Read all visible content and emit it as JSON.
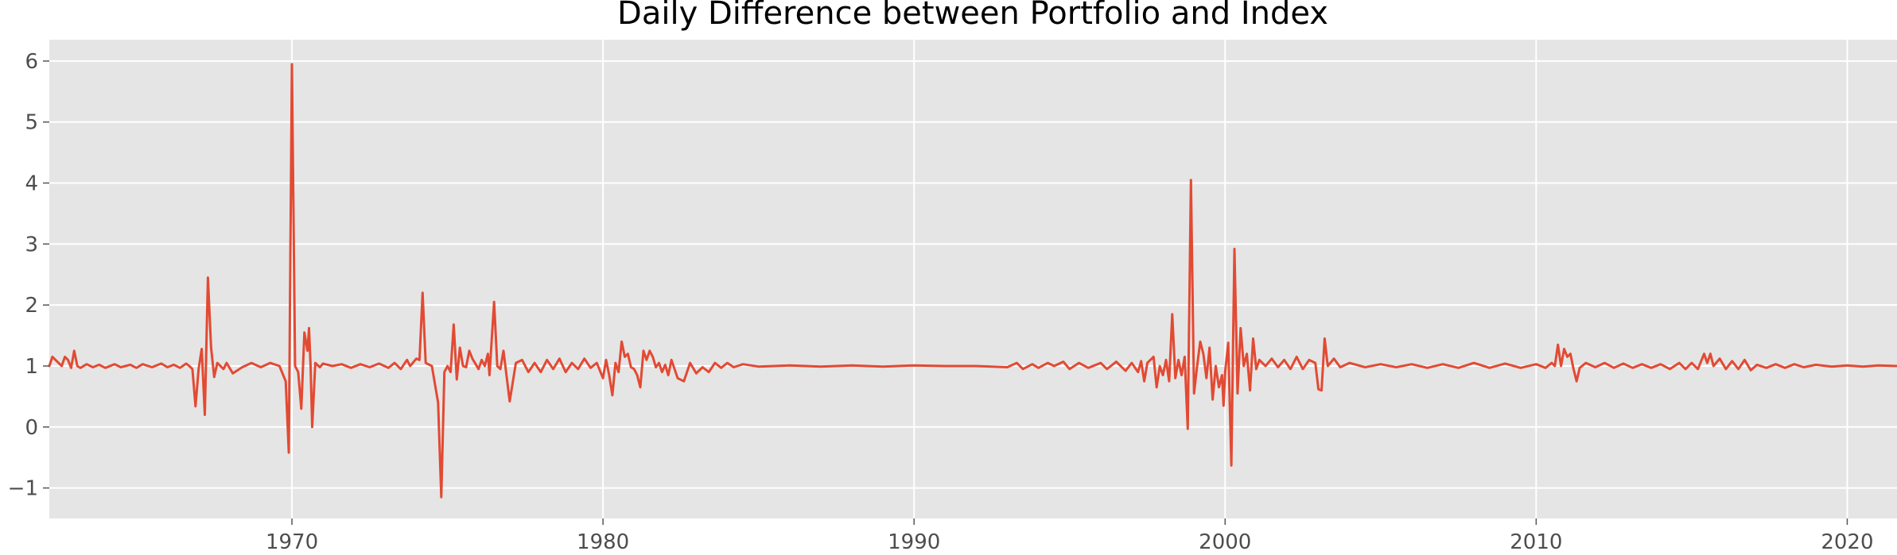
{
  "chart_data": {
    "type": "line",
    "title": "Daily Difference between Portfolio and Index",
    "xlabel": "",
    "ylabel": "",
    "grid": true,
    "xlim": [
      1962.2,
      2021.6
    ],
    "ylim": [
      -1.5,
      6.35
    ],
    "x_ticks": [
      1970,
      1980,
      1990,
      2000,
      2010,
      2020
    ],
    "x_tick_labels": [
      "1970",
      "1980",
      "1990",
      "2000",
      "2010",
      "2020"
    ],
    "y_ticks": [
      -1,
      0,
      1,
      2,
      3,
      4,
      5,
      6
    ],
    "y_tick_labels": [
      "−1",
      "0",
      "1",
      "2",
      "3",
      "4",
      "5",
      "6"
    ],
    "colors": {
      "line": "#E24A33",
      "plot_background": "#E5E5E5",
      "grid": "#FFFFFF"
    },
    "series": [
      {
        "points": [
          [
            1962.2,
            1.0
          ],
          [
            1962.3,
            1.15
          ],
          [
            1962.4,
            1.1
          ],
          [
            1962.6,
            1.0
          ],
          [
            1962.7,
            1.15
          ],
          [
            1962.8,
            1.1
          ],
          [
            1962.9,
            0.97
          ],
          [
            1963.0,
            1.25
          ],
          [
            1963.1,
            1.0
          ],
          [
            1963.2,
            0.97
          ],
          [
            1963.4,
            1.03
          ],
          [
            1963.6,
            0.98
          ],
          [
            1963.8,
            1.02
          ],
          [
            1964.0,
            0.97
          ],
          [
            1964.3,
            1.03
          ],
          [
            1964.5,
            0.98
          ],
          [
            1964.8,
            1.02
          ],
          [
            1965.0,
            0.97
          ],
          [
            1965.2,
            1.03
          ],
          [
            1965.5,
            0.98
          ],
          [
            1965.8,
            1.04
          ],
          [
            1966.0,
            0.98
          ],
          [
            1966.2,
            1.02
          ],
          [
            1966.4,
            0.97
          ],
          [
            1966.6,
            1.04
          ],
          [
            1966.7,
            1.0
          ],
          [
            1966.8,
            0.95
          ],
          [
            1966.9,
            0.34
          ],
          [
            1967.0,
            0.95
          ],
          [
            1967.1,
            1.28
          ],
          [
            1967.2,
            0.2
          ],
          [
            1967.3,
            2.45
          ],
          [
            1967.4,
            1.3
          ],
          [
            1967.5,
            0.82
          ],
          [
            1967.6,
            1.05
          ],
          [
            1967.8,
            0.95
          ],
          [
            1967.9,
            1.05
          ],
          [
            1968.1,
            0.88
          ],
          [
            1968.4,
            0.98
          ],
          [
            1968.7,
            1.05
          ],
          [
            1969.0,
            0.98
          ],
          [
            1969.3,
            1.05
          ],
          [
            1969.6,
            1.0
          ],
          [
            1969.8,
            0.75
          ],
          [
            1969.9,
            -0.42
          ],
          [
            1970.0,
            5.95
          ],
          [
            1970.1,
            1.0
          ],
          [
            1970.2,
            0.9
          ],
          [
            1970.3,
            0.3
          ],
          [
            1970.4,
            1.55
          ],
          [
            1970.5,
            1.25
          ],
          [
            1970.55,
            1.62
          ],
          [
            1970.6,
            1.0
          ],
          [
            1970.65,
            0.0
          ],
          [
            1970.75,
            1.05
          ],
          [
            1970.9,
            0.98
          ],
          [
            1971.0,
            1.04
          ],
          [
            1971.3,
            1.0
          ],
          [
            1971.6,
            1.03
          ],
          [
            1971.9,
            0.97
          ],
          [
            1972.2,
            1.03
          ],
          [
            1972.5,
            0.98
          ],
          [
            1972.8,
            1.04
          ],
          [
            1973.1,
            0.97
          ],
          [
            1973.3,
            1.05
          ],
          [
            1973.5,
            0.95
          ],
          [
            1973.7,
            1.1
          ],
          [
            1973.8,
            1.0
          ],
          [
            1974.0,
            1.12
          ],
          [
            1974.1,
            1.1
          ],
          [
            1974.2,
            2.2
          ],
          [
            1974.3,
            1.05
          ],
          [
            1974.5,
            1.0
          ],
          [
            1974.7,
            0.4
          ],
          [
            1974.8,
            -1.15
          ],
          [
            1974.9,
            0.9
          ],
          [
            1975.0,
            1.0
          ],
          [
            1975.1,
            0.9
          ],
          [
            1975.2,
            1.68
          ],
          [
            1975.3,
            0.78
          ],
          [
            1975.4,
            1.3
          ],
          [
            1975.5,
            1.0
          ],
          [
            1975.6,
            0.98
          ],
          [
            1975.7,
            1.25
          ],
          [
            1975.8,
            1.12
          ],
          [
            1976.0,
            0.95
          ],
          [
            1976.1,
            1.1
          ],
          [
            1976.2,
            1.0
          ],
          [
            1976.3,
            1.2
          ],
          [
            1976.35,
            0.85
          ],
          [
            1976.5,
            2.05
          ],
          [
            1976.6,
            1.0
          ],
          [
            1976.7,
            0.95
          ],
          [
            1976.8,
            1.25
          ],
          [
            1977.0,
            0.42
          ],
          [
            1977.2,
            1.05
          ],
          [
            1977.4,
            1.1
          ],
          [
            1977.6,
            0.9
          ],
          [
            1977.8,
            1.05
          ],
          [
            1978.0,
            0.9
          ],
          [
            1978.2,
            1.1
          ],
          [
            1978.4,
            0.95
          ],
          [
            1978.6,
            1.12
          ],
          [
            1978.8,
            0.9
          ],
          [
            1979.0,
            1.05
          ],
          [
            1979.2,
            0.95
          ],
          [
            1979.4,
            1.12
          ],
          [
            1979.6,
            0.97
          ],
          [
            1979.8,
            1.05
          ],
          [
            1980.0,
            0.8
          ],
          [
            1980.1,
            1.1
          ],
          [
            1980.2,
            0.85
          ],
          [
            1980.3,
            0.52
          ],
          [
            1980.4,
            1.05
          ],
          [
            1980.5,
            0.9
          ],
          [
            1980.6,
            1.4
          ],
          [
            1980.7,
            1.15
          ],
          [
            1980.8,
            1.2
          ],
          [
            1980.9,
            0.98
          ],
          [
            1981.0,
            0.95
          ],
          [
            1981.1,
            0.85
          ],
          [
            1981.2,
            0.65
          ],
          [
            1981.3,
            1.25
          ],
          [
            1981.4,
            1.1
          ],
          [
            1981.5,
            1.25
          ],
          [
            1981.6,
            1.15
          ],
          [
            1981.7,
            0.98
          ],
          [
            1981.8,
            1.05
          ],
          [
            1981.9,
            0.9
          ],
          [
            1982.0,
            1.02
          ],
          [
            1982.1,
            0.85
          ],
          [
            1982.2,
            1.1
          ],
          [
            1982.4,
            0.8
          ],
          [
            1982.6,
            0.75
          ],
          [
            1982.8,
            1.05
          ],
          [
            1983.0,
            0.88
          ],
          [
            1983.2,
            0.98
          ],
          [
            1983.4,
            0.9
          ],
          [
            1983.6,
            1.05
          ],
          [
            1983.8,
            0.97
          ],
          [
            1984.0,
            1.05
          ],
          [
            1984.2,
            0.98
          ],
          [
            1984.5,
            1.03
          ],
          [
            1985.0,
            0.99
          ],
          [
            1986.0,
            1.01
          ],
          [
            1987.0,
            0.99
          ],
          [
            1988.0,
            1.01
          ],
          [
            1989.0,
            0.99
          ],
          [
            1990.0,
            1.01
          ],
          [
            1991.0,
            1.0
          ],
          [
            1992.0,
            1.0
          ],
          [
            1993.0,
            0.98
          ],
          [
            1993.3,
            1.05
          ],
          [
            1993.5,
            0.95
          ],
          [
            1993.8,
            1.03
          ],
          [
            1994.0,
            0.97
          ],
          [
            1994.3,
            1.05
          ],
          [
            1994.5,
            1.0
          ],
          [
            1994.8,
            1.07
          ],
          [
            1995.0,
            0.95
          ],
          [
            1995.3,
            1.05
          ],
          [
            1995.6,
            0.97
          ],
          [
            1996.0,
            1.05
          ],
          [
            1996.2,
            0.95
          ],
          [
            1996.5,
            1.07
          ],
          [
            1996.8,
            0.92
          ],
          [
            1997.0,
            1.05
          ],
          [
            1997.2,
            0.9
          ],
          [
            1997.3,
            1.08
          ],
          [
            1997.4,
            0.75
          ],
          [
            1997.5,
            1.05
          ],
          [
            1997.7,
            1.15
          ],
          [
            1997.8,
            0.65
          ],
          [
            1997.9,
            1.0
          ],
          [
            1998.0,
            0.85
          ],
          [
            1998.1,
            1.1
          ],
          [
            1998.2,
            0.75
          ],
          [
            1998.3,
            1.85
          ],
          [
            1998.4,
            0.8
          ],
          [
            1998.5,
            1.1
          ],
          [
            1998.6,
            0.85
          ],
          [
            1998.7,
            1.15
          ],
          [
            1998.8,
            -0.03
          ],
          [
            1998.9,
            4.05
          ],
          [
            1999.0,
            0.55
          ],
          [
            1999.1,
            1.0
          ],
          [
            1999.2,
            1.4
          ],
          [
            1999.3,
            1.2
          ],
          [
            1999.4,
            0.8
          ],
          [
            1999.5,
            1.3
          ],
          [
            1999.6,
            0.45
          ],
          [
            1999.7,
            1.0
          ],
          [
            1999.8,
            0.65
          ],
          [
            1999.9,
            0.85
          ],
          [
            1999.95,
            0.35
          ],
          [
            2000.0,
            0.9
          ],
          [
            2000.1,
            1.38
          ],
          [
            2000.2,
            -0.63
          ],
          [
            2000.3,
            2.92
          ],
          [
            2000.4,
            0.55
          ],
          [
            2000.5,
            1.62
          ],
          [
            2000.6,
            1.0
          ],
          [
            2000.7,
            1.2
          ],
          [
            2000.8,
            0.6
          ],
          [
            2000.9,
            1.45
          ],
          [
            2001.0,
            0.95
          ],
          [
            2001.1,
            1.1
          ],
          [
            2001.3,
            1.0
          ],
          [
            2001.5,
            1.12
          ],
          [
            2001.7,
            0.98
          ],
          [
            2001.9,
            1.1
          ],
          [
            2002.1,
            0.95
          ],
          [
            2002.3,
            1.15
          ],
          [
            2002.5,
            0.95
          ],
          [
            2002.7,
            1.1
          ],
          [
            2002.9,
            1.05
          ],
          [
            2003.0,
            0.62
          ],
          [
            2003.1,
            0.6
          ],
          [
            2003.2,
            1.45
          ],
          [
            2003.3,
            1.0
          ],
          [
            2003.5,
            1.12
          ],
          [
            2003.7,
            0.98
          ],
          [
            2004.0,
            1.05
          ],
          [
            2004.5,
            0.98
          ],
          [
            2005.0,
            1.03
          ],
          [
            2005.5,
            0.98
          ],
          [
            2006.0,
            1.03
          ],
          [
            2006.5,
            0.97
          ],
          [
            2007.0,
            1.03
          ],
          [
            2007.5,
            0.97
          ],
          [
            2008.0,
            1.05
          ],
          [
            2008.5,
            0.97
          ],
          [
            2009.0,
            1.04
          ],
          [
            2009.5,
            0.97
          ],
          [
            2010.0,
            1.03
          ],
          [
            2010.3,
            0.97
          ],
          [
            2010.5,
            1.05
          ],
          [
            2010.6,
            1.0
          ],
          [
            2010.7,
            1.35
          ],
          [
            2010.8,
            1.0
          ],
          [
            2010.9,
            1.28
          ],
          [
            2011.0,
            1.15
          ],
          [
            2011.1,
            1.2
          ],
          [
            2011.2,
            0.95
          ],
          [
            2011.3,
            0.75
          ],
          [
            2011.4,
            0.97
          ],
          [
            2011.6,
            1.05
          ],
          [
            2011.9,
            0.98
          ],
          [
            2012.2,
            1.05
          ],
          [
            2012.5,
            0.97
          ],
          [
            2012.8,
            1.04
          ],
          [
            2013.1,
            0.97
          ],
          [
            2013.4,
            1.03
          ],
          [
            2013.7,
            0.97
          ],
          [
            2014.0,
            1.03
          ],
          [
            2014.3,
            0.95
          ],
          [
            2014.6,
            1.05
          ],
          [
            2014.8,
            0.95
          ],
          [
            2015.0,
            1.05
          ],
          [
            2015.2,
            0.95
          ],
          [
            2015.4,
            1.2
          ],
          [
            2015.5,
            1.05
          ],
          [
            2015.6,
            1.2
          ],
          [
            2015.7,
            1.0
          ],
          [
            2015.9,
            1.12
          ],
          [
            2016.1,
            0.95
          ],
          [
            2016.3,
            1.08
          ],
          [
            2016.5,
            0.95
          ],
          [
            2016.7,
            1.1
          ],
          [
            2016.9,
            0.93
          ],
          [
            2017.1,
            1.02
          ],
          [
            2017.4,
            0.97
          ],
          [
            2017.7,
            1.03
          ],
          [
            2018.0,
            0.97
          ],
          [
            2018.3,
            1.03
          ],
          [
            2018.6,
            0.98
          ],
          [
            2019.0,
            1.02
          ],
          [
            2019.5,
            0.99
          ],
          [
            2020.0,
            1.01
          ],
          [
            2020.5,
            0.99
          ],
          [
            2021.0,
            1.01
          ],
          [
            2021.6,
            1.0
          ]
        ]
      }
    ]
  }
}
